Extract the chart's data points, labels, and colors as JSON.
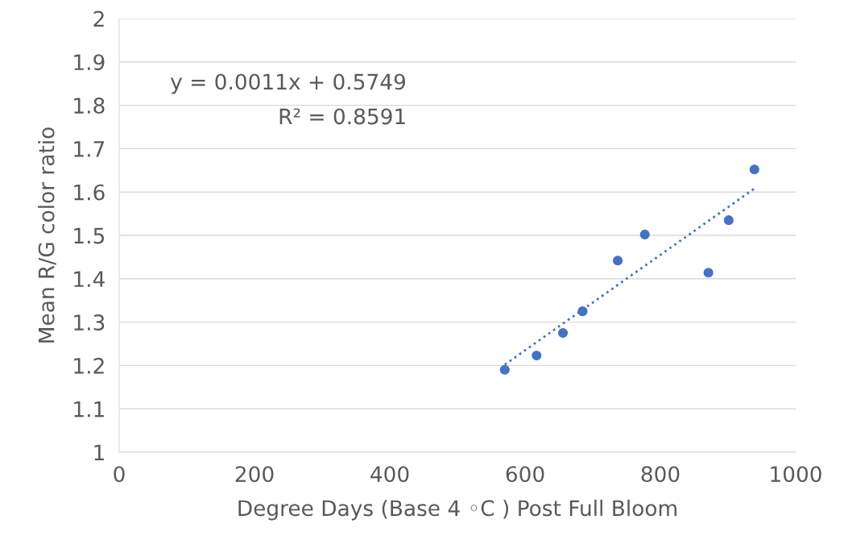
{
  "chart_data": {
    "type": "scatter",
    "xlabel": "Degree Days (Base 4 ◦C ) Post Full Bloom",
    "ylabel": "Mean R/G color ratio",
    "annotations": [
      "y = 0.0011x + 0.5749",
      "R² = 0.8591"
    ],
    "series": [
      {
        "color": "#4472c4",
        "x": [
          570,
          617,
          656,
          685,
          737,
          777,
          871,
          901,
          939
        ],
        "values": [
          1.19,
          1.223,
          1.275,
          1.325,
          1.442,
          1.502,
          1.414,
          1.535,
          1.652
        ],
        "marker": "circle"
      },
      {
        "type": "line",
        "color": "#4472c4",
        "x": [
          570,
          939
        ],
        "values": [
          1.202,
          1.608
        ],
        "line_style": "dotted",
        "marker": "none"
      }
    ],
    "xlim": [
      0,
      1000
    ],
    "xticks": [
      0,
      200,
      400,
      600,
      800,
      1000
    ],
    "ylim": [
      1,
      2
    ],
    "yticks": [
      {
        "value": 1,
        "label": "1"
      },
      1.1,
      1.2,
      1.3,
      1.4,
      1.5,
      1.6,
      1.7,
      1.8,
      1.9,
      {
        "value": 2,
        "label": "2"
      }
    ],
    "grid": "y",
    "legend": false
  }
}
